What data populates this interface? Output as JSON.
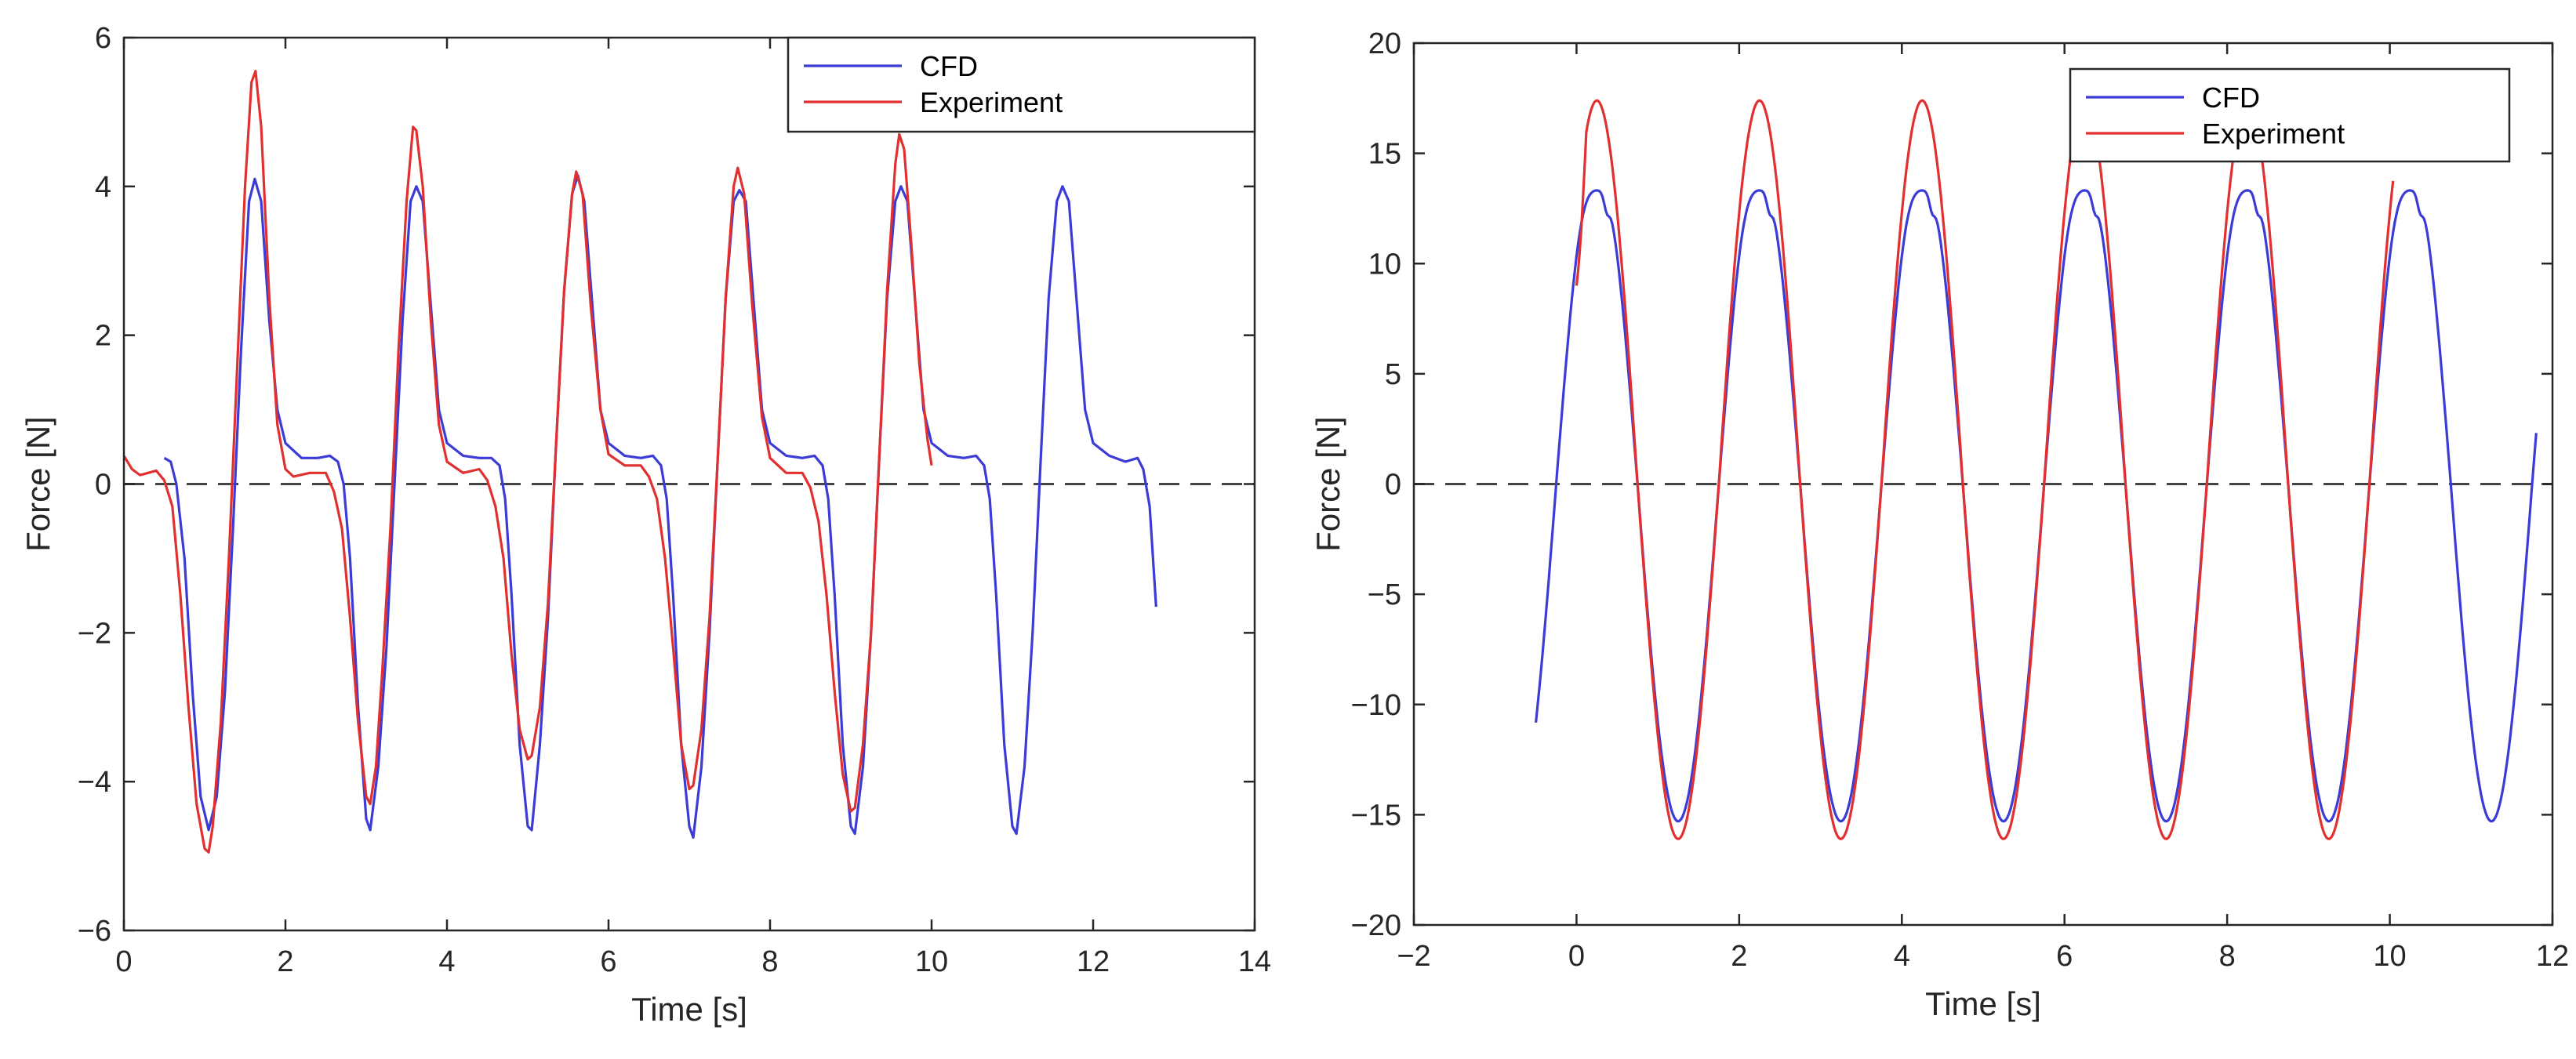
{
  "chart_data": [
    {
      "type": "line",
      "title": "",
      "xlabel": "Time [s]",
      "ylabel": "Force [N]",
      "xlim": [
        0,
        14
      ],
      "ylim": [
        -6,
        6
      ],
      "xticks": [
        0,
        2,
        4,
        6,
        8,
        10,
        12,
        14
      ],
      "yticks": [
        -6,
        -4,
        -2,
        0,
        2,
        4,
        6
      ],
      "xtick_labels": [
        "0",
        "2",
        "4",
        "6",
        "8",
        "10",
        "12",
        "14"
      ],
      "ytick_labels": [
        "−6",
        "−4",
        "−2",
        "0",
        "2",
        "4",
        "6"
      ],
      "grid": false,
      "reference_line": {
        "y": 0,
        "style": "dashed"
      },
      "legend": {
        "position": "top-right",
        "entries": [
          "CFD",
          "Experiment"
        ]
      },
      "series": [
        {
          "name": "CFD",
          "color": "#3b3bd6",
          "points": [
            [
              0.5,
              0.35
            ],
            [
              0.58,
              0.3
            ],
            [
              0.65,
              0.0
            ],
            [
              0.75,
              -1.0
            ],
            [
              0.85,
              -2.8
            ],
            [
              0.95,
              -4.2
            ],
            [
              1.05,
              -4.65
            ],
            [
              1.15,
              -4.2
            ],
            [
              1.25,
              -2.8
            ],
            [
              1.35,
              -0.6
            ],
            [
              1.45,
              1.8
            ],
            [
              1.55,
              3.8
            ],
            [
              1.62,
              4.1
            ],
            [
              1.7,
              3.8
            ],
            [
              1.8,
              2.2
            ],
            [
              1.9,
              1.0
            ],
            [
              2.0,
              0.55
            ],
            [
              2.2,
              0.35
            ],
            [
              2.4,
              0.35
            ],
            [
              2.55,
              0.38
            ],
            [
              2.65,
              0.3
            ],
            [
              2.72,
              0.0
            ],
            [
              2.8,
              -1.0
            ],
            [
              2.9,
              -3.0
            ],
            [
              3.0,
              -4.5
            ],
            [
              3.05,
              -4.65
            ],
            [
              3.15,
              -3.8
            ],
            [
              3.25,
              -2.2
            ],
            [
              3.35,
              0.0
            ],
            [
              3.45,
              2.2
            ],
            [
              3.55,
              3.8
            ],
            [
              3.62,
              4.0
            ],
            [
              3.7,
              3.8
            ],
            [
              3.8,
              2.4
            ],
            [
              3.9,
              1.0
            ],
            [
              4.0,
              0.55
            ],
            [
              4.2,
              0.38
            ],
            [
              4.4,
              0.35
            ],
            [
              4.55,
              0.35
            ],
            [
              4.65,
              0.25
            ],
            [
              4.72,
              -0.2
            ],
            [
              4.8,
              -1.5
            ],
            [
              4.9,
              -3.5
            ],
            [
              5.0,
              -4.6
            ],
            [
              5.05,
              -4.65
            ],
            [
              5.15,
              -3.5
            ],
            [
              5.25,
              -1.8
            ],
            [
              5.35,
              0.5
            ],
            [
              5.45,
              2.6
            ],
            [
              5.55,
              3.9
            ],
            [
              5.62,
              4.15
            ],
            [
              5.7,
              3.8
            ],
            [
              5.8,
              2.4
            ],
            [
              5.9,
              1.0
            ],
            [
              6.0,
              0.55
            ],
            [
              6.2,
              0.38
            ],
            [
              6.4,
              0.35
            ],
            [
              6.55,
              0.38
            ],
            [
              6.65,
              0.25
            ],
            [
              6.72,
              -0.2
            ],
            [
              6.8,
              -1.5
            ],
            [
              6.9,
              -3.5
            ],
            [
              7.0,
              -4.6
            ],
            [
              7.05,
              -4.75
            ],
            [
              7.15,
              -3.8
            ],
            [
              7.25,
              -2.0
            ],
            [
              7.35,
              0.3
            ],
            [
              7.45,
              2.5
            ],
            [
              7.55,
              3.8
            ],
            [
              7.62,
              3.95
            ],
            [
              7.7,
              3.8
            ],
            [
              7.8,
              2.4
            ],
            [
              7.9,
              1.0
            ],
            [
              8.0,
              0.55
            ],
            [
              8.2,
              0.38
            ],
            [
              8.4,
              0.35
            ],
            [
              8.55,
              0.38
            ],
            [
              8.65,
              0.25
            ],
            [
              8.72,
              -0.2
            ],
            [
              8.8,
              -1.5
            ],
            [
              8.9,
              -3.5
            ],
            [
              9.0,
              -4.6
            ],
            [
              9.05,
              -4.7
            ],
            [
              9.15,
              -3.8
            ],
            [
              9.25,
              -2.0
            ],
            [
              9.35,
              0.3
            ],
            [
              9.45,
              2.5
            ],
            [
              9.55,
              3.8
            ],
            [
              9.62,
              4.0
            ],
            [
              9.7,
              3.8
            ],
            [
              9.8,
              2.4
            ],
            [
              9.9,
              1.0
            ],
            [
              10.0,
              0.55
            ],
            [
              10.2,
              0.38
            ],
            [
              10.4,
              0.35
            ],
            [
              10.55,
              0.38
            ],
            [
              10.65,
              0.25
            ],
            [
              10.72,
              -0.2
            ],
            [
              10.8,
              -1.5
            ],
            [
              10.9,
              -3.5
            ],
            [
              11.0,
              -4.6
            ],
            [
              11.05,
              -4.7
            ],
            [
              11.15,
              -3.8
            ],
            [
              11.25,
              -2.0
            ],
            [
              11.35,
              0.3
            ],
            [
              11.45,
              2.5
            ],
            [
              11.55,
              3.8
            ],
            [
              11.62,
              4.0
            ],
            [
              11.7,
              3.8
            ],
            [
              11.8,
              2.4
            ],
            [
              11.9,
              1.0
            ],
            [
              12.0,
              0.55
            ],
            [
              12.2,
              0.38
            ],
            [
              12.4,
              0.3
            ],
            [
              12.55,
              0.35
            ],
            [
              12.62,
              0.2
            ],
            [
              12.7,
              -0.3
            ],
            [
              12.78,
              -1.65
            ]
          ]
        },
        {
          "name": "Experiment",
          "color": "#e03030",
          "points": [
            [
              0.0,
              0.38
            ],
            [
              0.1,
              0.2
            ],
            [
              0.2,
              0.12
            ],
            [
              0.3,
              0.15
            ],
            [
              0.4,
              0.18
            ],
            [
              0.5,
              0.05
            ],
            [
              0.6,
              -0.3
            ],
            [
              0.7,
              -1.5
            ],
            [
              0.8,
              -3.0
            ],
            [
              0.9,
              -4.3
            ],
            [
              1.0,
              -4.9
            ],
            [
              1.05,
              -4.95
            ],
            [
              1.1,
              -4.6
            ],
            [
              1.2,
              -3.2
            ],
            [
              1.3,
              -1.0
            ],
            [
              1.4,
              1.5
            ],
            [
              1.5,
              4.0
            ],
            [
              1.58,
              5.4
            ],
            [
              1.63,
              5.55
            ],
            [
              1.7,
              4.8
            ],
            [
              1.8,
              2.5
            ],
            [
              1.9,
              0.8
            ],
            [
              2.0,
              0.2
            ],
            [
              2.1,
              0.1
            ],
            [
              2.3,
              0.15
            ],
            [
              2.5,
              0.15
            ],
            [
              2.6,
              -0.1
            ],
            [
              2.7,
              -0.6
            ],
            [
              2.8,
              -1.8
            ],
            [
              2.9,
              -3.2
            ],
            [
              3.0,
              -4.2
            ],
            [
              3.05,
              -4.3
            ],
            [
              3.12,
              -3.8
            ],
            [
              3.2,
              -2.5
            ],
            [
              3.3,
              -0.6
            ],
            [
              3.4,
              1.8
            ],
            [
              3.5,
              3.8
            ],
            [
              3.58,
              4.8
            ],
            [
              3.62,
              4.75
            ],
            [
              3.7,
              4.0
            ],
            [
              3.8,
              2.2
            ],
            [
              3.9,
              0.8
            ],
            [
              4.0,
              0.3
            ],
            [
              4.2,
              0.15
            ],
            [
              4.4,
              0.2
            ],
            [
              4.5,
              0.05
            ],
            [
              4.6,
              -0.3
            ],
            [
              4.7,
              -1.0
            ],
            [
              4.8,
              -2.3
            ],
            [
              4.9,
              -3.3
            ],
            [
              5.0,
              -3.7
            ],
            [
              5.05,
              -3.65
            ],
            [
              5.15,
              -3.0
            ],
            [
              5.25,
              -1.6
            ],
            [
              5.35,
              0.5
            ],
            [
              5.45,
              2.6
            ],
            [
              5.55,
              3.9
            ],
            [
              5.6,
              4.2
            ],
            [
              5.68,
              3.9
            ],
            [
              5.78,
              2.4
            ],
            [
              5.9,
              1.0
            ],
            [
              6.0,
              0.4
            ],
            [
              6.2,
              0.25
            ],
            [
              6.4,
              0.25
            ],
            [
              6.5,
              0.1
            ],
            [
              6.6,
              -0.2
            ],
            [
              6.7,
              -1.0
            ],
            [
              6.8,
              -2.2
            ],
            [
              6.9,
              -3.5
            ],
            [
              7.0,
              -4.1
            ],
            [
              7.05,
              -4.05
            ],
            [
              7.15,
              -3.3
            ],
            [
              7.25,
              -1.8
            ],
            [
              7.35,
              0.3
            ],
            [
              7.45,
              2.5
            ],
            [
              7.55,
              4.0
            ],
            [
              7.6,
              4.25
            ],
            [
              7.68,
              3.9
            ],
            [
              7.78,
              2.4
            ],
            [
              7.9,
              0.9
            ],
            [
              8.0,
              0.35
            ],
            [
              8.2,
              0.15
            ],
            [
              8.4,
              0.15
            ],
            [
              8.5,
              -0.05
            ],
            [
              8.6,
              -0.5
            ],
            [
              8.7,
              -1.5
            ],
            [
              8.8,
              -2.8
            ],
            [
              8.9,
              -3.9
            ],
            [
              9.0,
              -4.4
            ],
            [
              9.05,
              -4.35
            ],
            [
              9.15,
              -3.5
            ],
            [
              9.25,
              -2.0
            ],
            [
              9.35,
              0.3
            ],
            [
              9.45,
              2.6
            ],
            [
              9.55,
              4.3
            ],
            [
              9.6,
              4.7
            ],
            [
              9.66,
              4.5
            ],
            [
              9.75,
              3.2
            ],
            [
              9.85,
              1.6
            ],
            [
              9.95,
              0.6
            ],
            [
              10.0,
              0.25
            ]
          ]
        }
      ]
    },
    {
      "type": "line",
      "title": "",
      "xlabel": "Time [s]",
      "ylabel": "Force [N]",
      "xlim": [
        -2,
        12
      ],
      "ylim": [
        -20,
        20
      ],
      "xticks": [
        -2,
        0,
        2,
        4,
        6,
        8,
        10,
        12
      ],
      "yticks": [
        -20,
        -15,
        -10,
        -5,
        0,
        5,
        10,
        15,
        20
      ],
      "xtick_labels": [
        "−2",
        "0",
        "2",
        "4",
        "6",
        "8",
        "10",
        "12"
      ],
      "ytick_labels": [
        "−20",
        "−15",
        "−10",
        "−5",
        "0",
        "5",
        "10",
        "15",
        "20"
      ],
      "grid": false,
      "reference_line": {
        "y": 0,
        "style": "dashed"
      },
      "legend": {
        "position": "top-right",
        "entries": [
          "CFD",
          "Experiment"
        ]
      },
      "series": [
        {
          "name": "CFD",
          "color": "#3b3bd6",
          "wave": {
            "start": -0.5,
            "end": 11.8,
            "phase": -0.25,
            "period": 2.0,
            "peak": 14.8,
            "trough": -15.3,
            "flatten": 0.4,
            "asymmetry": 0.6
          }
        },
        {
          "name": "Experiment",
          "color": "#e03030",
          "wave": {
            "start": 0.0,
            "end": 10.05,
            "phase": -0.25,
            "period": 2.0,
            "peak": 17.4,
            "trough": -16.1,
            "start_value": 9.0,
            "flatten": 0.0,
            "asymmetry": 0.0
          }
        }
      ]
    }
  ]
}
